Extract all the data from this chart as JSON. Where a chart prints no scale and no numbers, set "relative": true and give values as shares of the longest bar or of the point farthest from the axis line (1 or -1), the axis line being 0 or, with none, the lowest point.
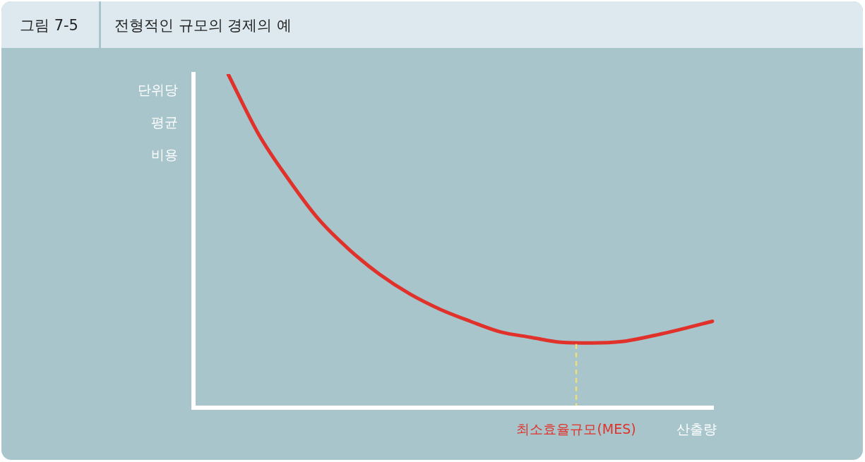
{
  "chart_data": {
    "type": "line",
    "subtitle": "그림 7-5",
    "title": "전형적인 규모의 경제의 예",
    "ylabel": "단위당 평균 비용",
    "xlabel": "산출량",
    "relative": true,
    "categories": [
      null,
      null,
      null,
      null,
      null,
      null,
      null,
      null,
      null,
      null,
      null,
      null,
      null,
      null,
      null,
      null,
      null
    ],
    "series": [
      {
        "color": "#e0322b",
        "values": [
          1,
          0.821,
          0.684,
          0.564,
          0.474,
          0.4,
          0.341,
          0.295,
          0.259,
          0.227,
          0.211,
          0.196,
          0.194,
          0.198,
          0.215,
          0.236,
          0.259
        ]
      }
    ],
    "annotations": [
      "최소효율규모(MES)"
    ],
    "grid": false,
    "legend": false,
    "marker": "none",
    "line_style": "solid"
  }
}
